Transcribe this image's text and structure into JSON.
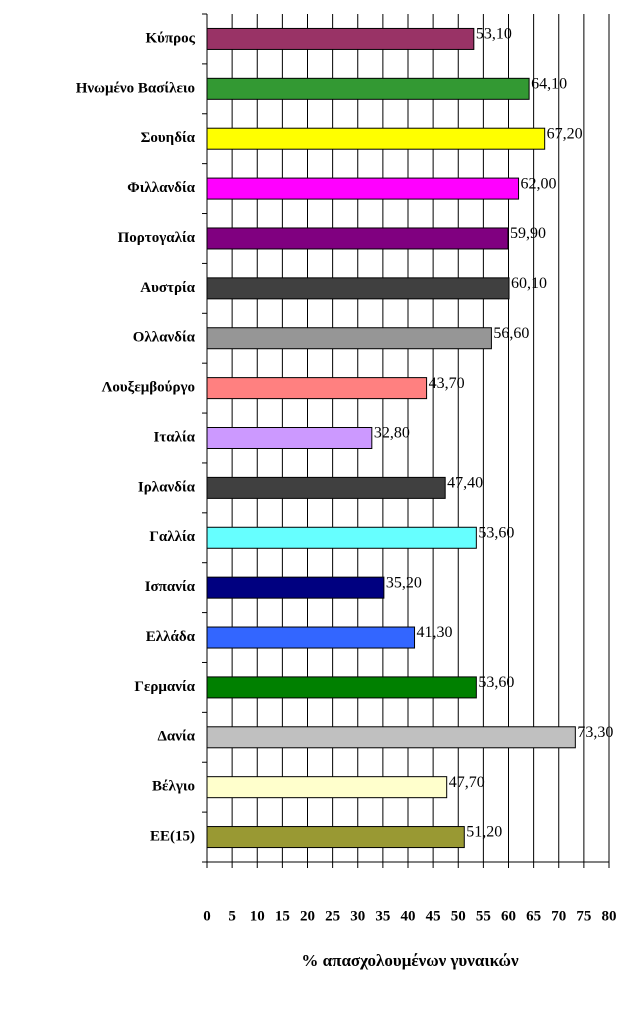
{
  "chart_data": {
    "type": "barh",
    "x_label": "% απασχολουμένων γυναικών",
    "categories": [
      "Κύπρος",
      "Ηνωμένο Βασίλειο",
      "Σουηδία",
      "Φιλλανδία",
      "Πορτογαλία",
      "Αυστρία",
      "Ολλανδία",
      "Λουξεμβούργο",
      "Ιταλία",
      "Ιρλανδία",
      "Γαλλία",
      "Ισπανία",
      "Ελλάδα",
      "Γερμανία",
      "Δανία",
      "Βέλγιο",
      "ΕΕ(15)"
    ],
    "values": [
      53.1,
      64.1,
      67.2,
      62.0,
      59.9,
      60.1,
      56.6,
      43.7,
      32.8,
      47.4,
      53.6,
      35.2,
      41.3,
      53.6,
      73.3,
      47.7,
      51.2
    ],
    "value_labels": [
      "53,10",
      "64,10",
      "67,20",
      "62,00",
      "59,90",
      "60,10",
      "56,60",
      "43,70",
      "32,80",
      "47,40",
      "53,60",
      "35,20",
      "41,30",
      "53,60",
      "73,30",
      "47,70",
      "51,20"
    ],
    "colors": [
      "#993366",
      "#339933",
      "#ffff00",
      "#ff00ff",
      "#800080",
      "#404040",
      "#969696",
      "#ff8080",
      "#cc99ff",
      "#404040",
      "#66ffff",
      "#000080",
      "#3366ff",
      "#008000",
      "#c0c0c0",
      "#ffffcc",
      "#999933"
    ],
    "xlim": [
      0,
      80
    ],
    "xticks": [
      0,
      5,
      10,
      15,
      20,
      25,
      30,
      35,
      40,
      45,
      50,
      55,
      60,
      65,
      70,
      75,
      80
    ],
    "grid": true
  }
}
